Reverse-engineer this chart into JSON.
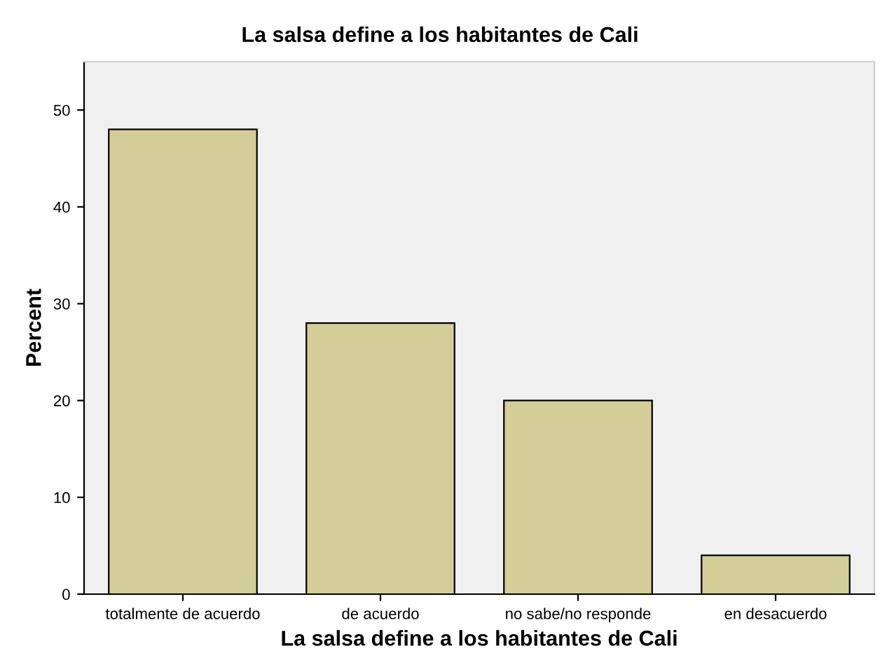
{
  "chart_data": {
    "type": "bar",
    "title": "La salsa define a los habitantes de Cali",
    "xlabel": "La salsa define a los habitantes de Cali",
    "ylabel": "Percent",
    "categories": [
      "totalmente de acuerdo",
      "de acuerdo",
      "no sabe/no responde",
      "en desacuerdo"
    ],
    "values": [
      48,
      28,
      20,
      4
    ],
    "color": "#d3ce98",
    "ylim": [
      0,
      55
    ],
    "yticks": [
      0,
      10,
      20,
      30,
      40,
      50
    ],
    "grid": false,
    "legend": false
  }
}
